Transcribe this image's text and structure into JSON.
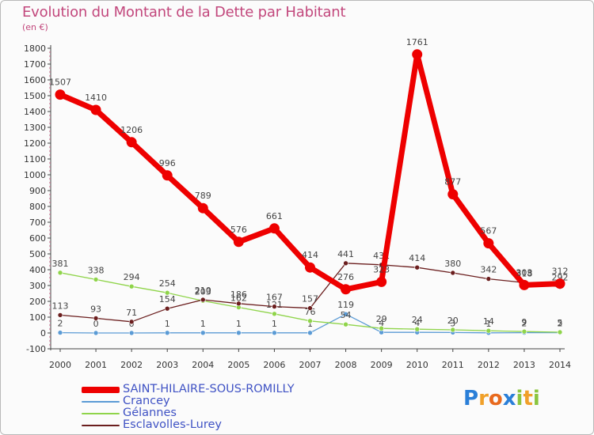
{
  "chart_data": {
    "type": "line",
    "title": "Evolution du Montant de la Dette par Habitant",
    "subtitle": "(en €)",
    "x": [
      "2000",
      "2001",
      "2002",
      "2003",
      "2004",
      "2005",
      "2006",
      "2007",
      "2008",
      "2009",
      "2010",
      "2011",
      "2012",
      "2013",
      "2014"
    ],
    "ylim": [
      -100,
      1800
    ],
    "yticks": [
      -100,
      0,
      100,
      200,
      300,
      400,
      500,
      600,
      700,
      800,
      900,
      1000,
      1100,
      1200,
      1300,
      1400,
      1500,
      1600,
      1700,
      1800
    ],
    "grid": false,
    "legend_position": "bottom-left",
    "series": [
      {
        "name": "SAINT-HILAIRE-SOUS-ROMILLY",
        "color": "#ee0000",
        "values": [
          1507,
          1410,
          1206,
          996,
          789,
          576,
          661,
          414,
          276,
          323,
          1761,
          877,
          567,
          303,
          312
        ]
      },
      {
        "name": "Crancey",
        "color": "#5b9bd5",
        "values": [
          2,
          0,
          0,
          1,
          1,
          1,
          1,
          1,
          119,
          4,
          4,
          3,
          1,
          2,
          2
        ]
      },
      {
        "name": "Gélannes",
        "color": "#8fd44a",
        "values": [
          381,
          338,
          294,
          254,
          203,
          162,
          121,
          76,
          54,
          29,
          24,
          20,
          14,
          9,
          5
        ]
      },
      {
        "name": "Esclavolles-Lurey",
        "color": "#6b1e1e",
        "values": [
          113,
          93,
          71,
          154,
          210,
          186,
          167,
          157,
          441,
          431,
          414,
          380,
          342,
          318,
          292
        ]
      }
    ]
  },
  "logo": {
    "text": "Proxiti",
    "letter_colors": [
      "#2a7fd8",
      "#f0a02a",
      "#e86a1e",
      "#2a7fd8",
      "#8bc53f",
      "#f0a02a",
      "#8bc53f"
    ]
  }
}
